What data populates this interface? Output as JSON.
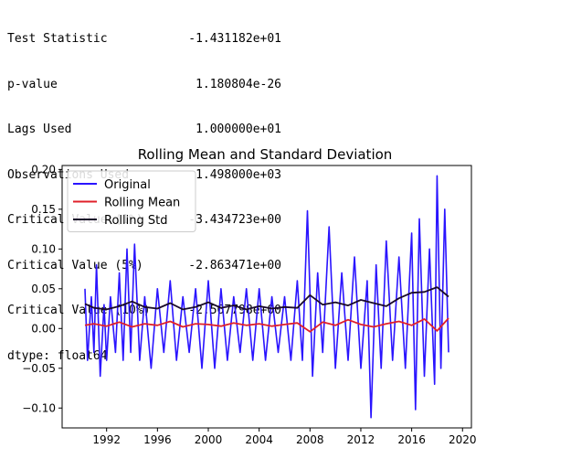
{
  "stats": {
    "rows": [
      {
        "key": "Test Statistic",
        "value": "-1.431182e+01"
      },
      {
        "key": "p-value",
        "value": "1.180804e-26"
      },
      {
        "key": "Lags Used",
        "value": "1.000000e+01"
      },
      {
        "key": "Observations Used",
        "value": "1.498000e+03"
      },
      {
        "key": "Critical Value (1%)",
        "value": "-3.434723e+00"
      },
      {
        "key": "Critical Value (5%)",
        "value": "-2.863471e+00"
      },
      {
        "key": "Critical Value (10%)",
        "value": "-2.567798e+00"
      }
    ],
    "dtype": "dtype: float64"
  },
  "chart_data": {
    "type": "line",
    "title": "Rolling Mean and Standard Deviation",
    "xlabel": "",
    "ylabel": "",
    "xlim": [
      1988.5,
      2020.7
    ],
    "ylim": [
      -0.125,
      0.205
    ],
    "x_ticks": [
      1992,
      1996,
      2000,
      2004,
      2008,
      2012,
      2016,
      2020
    ],
    "y_ticks": [
      -0.1,
      -0.05,
      0.0,
      0.05,
      0.1,
      0.15,
      0.2
    ],
    "y_tick_labels": [
      "−0.10",
      "−0.05",
      "0.00",
      "0.05",
      "0.10",
      "0.15",
      "0.20"
    ],
    "legend_position": "top-left",
    "grid": false,
    "series": [
      {
        "name": "Original",
        "color": "#2a14ff",
        "x": [
          1990.3,
          1990.5,
          1990.8,
          1991.0,
          1991.2,
          1991.5,
          1991.8,
          1992.0,
          1992.3,
          1992.7,
          1993.0,
          1993.3,
          1993.6,
          1993.9,
          1994.2,
          1994.6,
          1995.0,
          1995.5,
          1996.0,
          1996.5,
          1997.0,
          1997.5,
          1998.0,
          1998.5,
          1999.0,
          1999.5,
          2000.0,
          2000.5,
          2001.0,
          2001.5,
          2002.0,
          2002.5,
          2003.0,
          2003.5,
          2004.0,
          2004.5,
          2005.0,
          2005.5,
          2006.0,
          2006.5,
          2007.0,
          2007.4,
          2007.8,
          2008.2,
          2008.6,
          2009.0,
          2009.5,
          2010.0,
          2010.5,
          2011.0,
          2011.5,
          2012.0,
          2012.5,
          2012.8,
          2013.2,
          2013.6,
          2014.0,
          2014.5,
          2015.0,
          2015.5,
          2016.0,
          2016.3,
          2016.6,
          2017.0,
          2017.4,
          2017.8,
          2018.0,
          2018.3,
          2018.6,
          2018.9
        ],
        "y": [
          0.05,
          -0.04,
          0.04,
          -0.03,
          0.08,
          -0.06,
          0.03,
          -0.04,
          0.04,
          -0.03,
          0.07,
          -0.04,
          0.1,
          -0.03,
          0.106,
          -0.04,
          0.04,
          -0.05,
          0.05,
          -0.03,
          0.06,
          -0.04,
          0.04,
          -0.03,
          0.05,
          -0.05,
          0.06,
          -0.05,
          0.05,
          -0.04,
          0.04,
          -0.03,
          0.05,
          -0.04,
          0.05,
          -0.04,
          0.04,
          -0.03,
          0.04,
          -0.04,
          0.06,
          -0.04,
          0.148,
          -0.06,
          0.07,
          -0.03,
          0.128,
          -0.05,
          0.07,
          -0.04,
          0.09,
          -0.05,
          0.06,
          -0.112,
          0.08,
          -0.05,
          0.11,
          -0.04,
          0.09,
          -0.05,
          0.12,
          -0.102,
          0.138,
          -0.06,
          0.1,
          -0.07,
          0.192,
          -0.05,
          0.15,
          -0.03
        ]
      },
      {
        "name": "Rolling Mean",
        "color": "#e0202a",
        "x": [
          1990.3,
          1991.0,
          1992.0,
          1993.0,
          1994.0,
          1995.0,
          1996.0,
          1997.0,
          1998.0,
          1999.0,
          2000.0,
          2001.0,
          2002.0,
          2003.0,
          2004.0,
          2005.0,
          2006.0,
          2007.0,
          2008.0,
          2009.0,
          2010.0,
          2011.0,
          2012.0,
          2013.0,
          2014.0,
          2015.0,
          2016.0,
          2017.0,
          2018.0,
          2018.9
        ],
        "y": [
          0.004,
          0.006,
          0.003,
          0.008,
          0.002,
          0.006,
          0.004,
          0.009,
          0.002,
          0.006,
          0.005,
          0.003,
          0.007,
          0.004,
          0.006,
          0.003,
          0.005,
          0.007,
          -0.004,
          0.008,
          0.004,
          0.011,
          0.005,
          0.002,
          0.006,
          0.009,
          0.004,
          0.012,
          -0.003,
          0.013
        ]
      },
      {
        "name": "Rolling Std",
        "color": "#1a0a2a",
        "x": [
          1990.3,
          1991.0,
          1992.0,
          1993.0,
          1994.0,
          1995.0,
          1996.0,
          1997.0,
          1998.0,
          1999.0,
          2000.0,
          2001.0,
          2002.0,
          2003.0,
          2004.0,
          2005.0,
          2006.0,
          2007.0,
          2008.0,
          2009.0,
          2010.0,
          2011.0,
          2012.0,
          2013.0,
          2014.0,
          2015.0,
          2016.0,
          2017.0,
          2018.0,
          2018.9
        ],
        "y": [
          0.031,
          0.026,
          0.024,
          0.028,
          0.034,
          0.027,
          0.025,
          0.032,
          0.024,
          0.027,
          0.033,
          0.026,
          0.029,
          0.024,
          0.028,
          0.025,
          0.027,
          0.026,
          0.042,
          0.03,
          0.033,
          0.029,
          0.036,
          0.032,
          0.028,
          0.038,
          0.045,
          0.046,
          0.052,
          0.04
        ]
      }
    ]
  }
}
